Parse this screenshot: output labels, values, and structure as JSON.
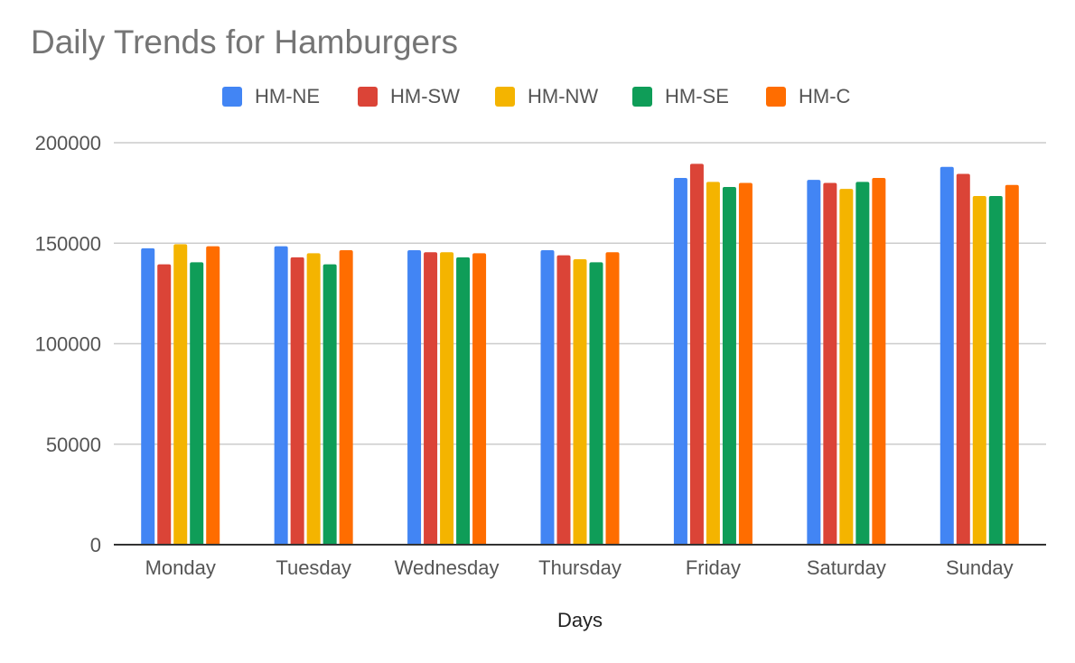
{
  "chart_data": {
    "type": "bar",
    "title": "Daily Trends for Hamburgers",
    "xlabel": "Days",
    "ylabel": "",
    "ylim": [
      0,
      200000
    ],
    "yticks": [
      "0",
      "50000",
      "100000",
      "150000",
      "200000"
    ],
    "ytick_values": [
      0,
      50000,
      100000,
      150000,
      200000
    ],
    "grid": true,
    "legend_position": "top",
    "categories": [
      "Monday",
      "Tuesday",
      "Wednesday",
      "Thursday",
      "Friday",
      "Saturday",
      "Sunday"
    ],
    "series": [
      {
        "name": "HM-NE",
        "color": "#4285F4",
        "values": [
          147500,
          148500,
          146500,
          146500,
          182500,
          181500,
          188000
        ]
      },
      {
        "name": "HM-SW",
        "color": "#DB4437",
        "values": [
          139500,
          143000,
          145500,
          144000,
          189500,
          180000,
          184500
        ]
      },
      {
        "name": "HM-NW",
        "color": "#F4B400",
        "values": [
          149500,
          145000,
          145500,
          142000,
          180500,
          177000,
          173500
        ]
      },
      {
        "name": "HM-SE",
        "color": "#0F9D58",
        "values": [
          140500,
          139500,
          143000,
          140500,
          178000,
          180500,
          173500
        ]
      },
      {
        "name": "HM-C",
        "color": "#FF6D00",
        "values": [
          148500,
          146500,
          145000,
          145500,
          180000,
          182500,
          179000
        ]
      }
    ]
  }
}
